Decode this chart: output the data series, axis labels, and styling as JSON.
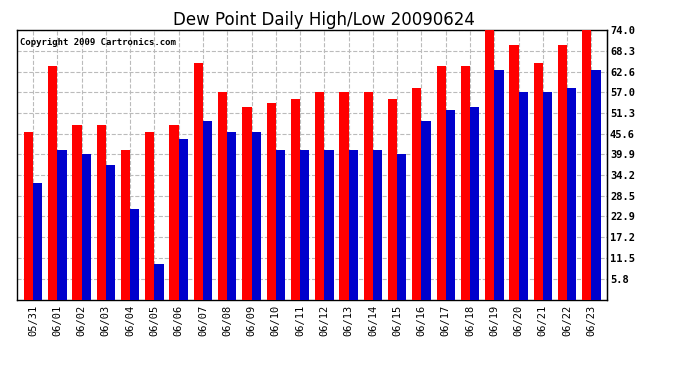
{
  "title": "Dew Point Daily High/Low 20090624",
  "copyright": "Copyright 2009 Cartronics.com",
  "categories": [
    "05/31",
    "06/01",
    "06/02",
    "06/03",
    "06/04",
    "06/05",
    "06/06",
    "06/07",
    "06/08",
    "06/09",
    "06/10",
    "06/11",
    "06/12",
    "06/13",
    "06/14",
    "06/15",
    "06/16",
    "06/17",
    "06/18",
    "06/19",
    "06/20",
    "06/21",
    "06/22",
    "06/23"
  ],
  "highs": [
    46,
    64,
    48,
    48,
    41,
    46,
    48,
    65,
    57,
    53,
    54,
    55,
    57,
    57,
    57,
    55,
    58,
    64,
    64,
    75,
    70,
    65,
    70,
    75
  ],
  "lows": [
    32,
    41,
    40,
    37,
    25,
    10,
    44,
    49,
    46,
    46,
    41,
    41,
    41,
    41,
    41,
    40,
    49,
    52,
    53,
    63,
    57,
    57,
    58,
    63
  ],
  "high_color": "#ff0000",
  "low_color": "#0000cc",
  "bg_color": "#ffffff",
  "plot_bg_color": "#ffffff",
  "grid_color": "#bbbbbb",
  "yticks": [
    5.8,
    11.5,
    17.2,
    22.9,
    28.5,
    34.2,
    39.9,
    45.6,
    51.3,
    57.0,
    62.6,
    68.3,
    74.0
  ],
  "ymin": 0,
  "ymax": 74.0,
  "ylim_display_min": 5.8,
  "title_fontsize": 12,
  "tick_fontsize": 7.5,
  "copyright_fontsize": 6.5,
  "bar_width": 0.38
}
